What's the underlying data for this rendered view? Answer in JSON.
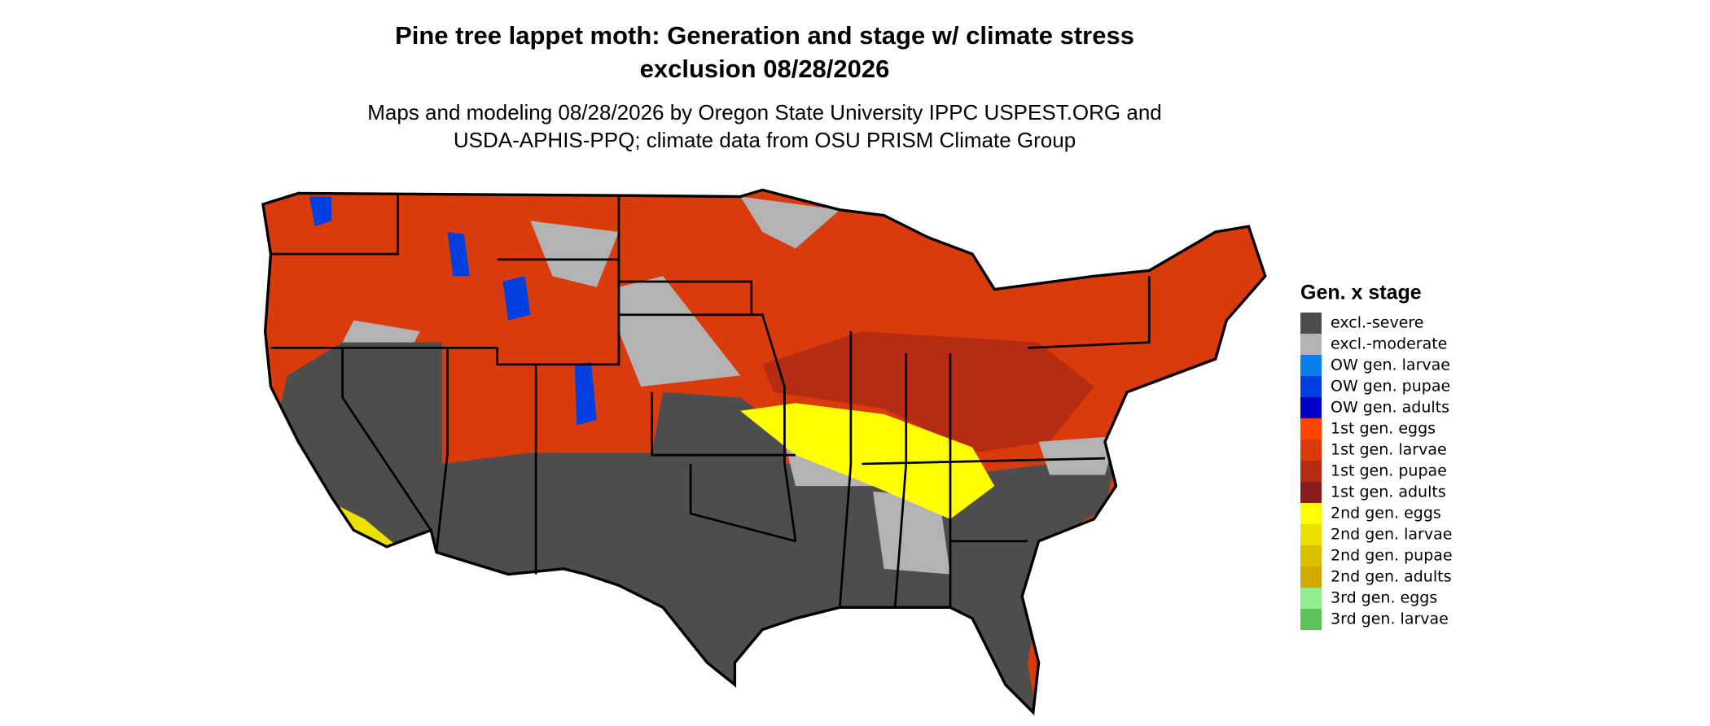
{
  "title": [
    "Pine tree lappet moth: Generation and stage w/ climate stress",
    "exclusion 08/28/2026"
  ],
  "subtitle": [
    "Maps and modeling 08/28/2026 by Oregon State University IPPC USPEST.ORG and",
    "USDA-APHIS-PPQ; climate data from OSU PRISM Climate Group"
  ],
  "legend": {
    "title": "Gen. x stage",
    "items": [
      {
        "label": "excl.-severe",
        "color": "#4d4d4d"
      },
      {
        "label": "excl.-moderate",
        "color": "#b3b3b3"
      },
      {
        "label": "OW gen. larvae",
        "color": "#0a80e8"
      },
      {
        "label": "OW gen. pupae",
        "color": "#0040e0"
      },
      {
        "label": "OW gen. adults",
        "color": "#0000c8"
      },
      {
        "label": "1st gen. eggs",
        "color": "#ff4500"
      },
      {
        "label": "1st gen. larvae",
        "color": "#d93b0c"
      },
      {
        "label": "1st gen. pupae",
        "color": "#b52c12"
      },
      {
        "label": "1st gen. adults",
        "color": "#8b1a1a"
      },
      {
        "label": "2nd gen. eggs",
        "color": "#ffff00"
      },
      {
        "label": "2nd gen. larvae",
        "color": "#ebe000"
      },
      {
        "label": "2nd gen. pupae",
        "color": "#dcc000"
      },
      {
        "label": "2nd gen. adults",
        "color": "#d0a800"
      },
      {
        "label": "3rd gen. eggs",
        "color": "#90ee90"
      },
      {
        "label": "3rd gen. larvae",
        "color": "#5cc05c"
      }
    ]
  }
}
